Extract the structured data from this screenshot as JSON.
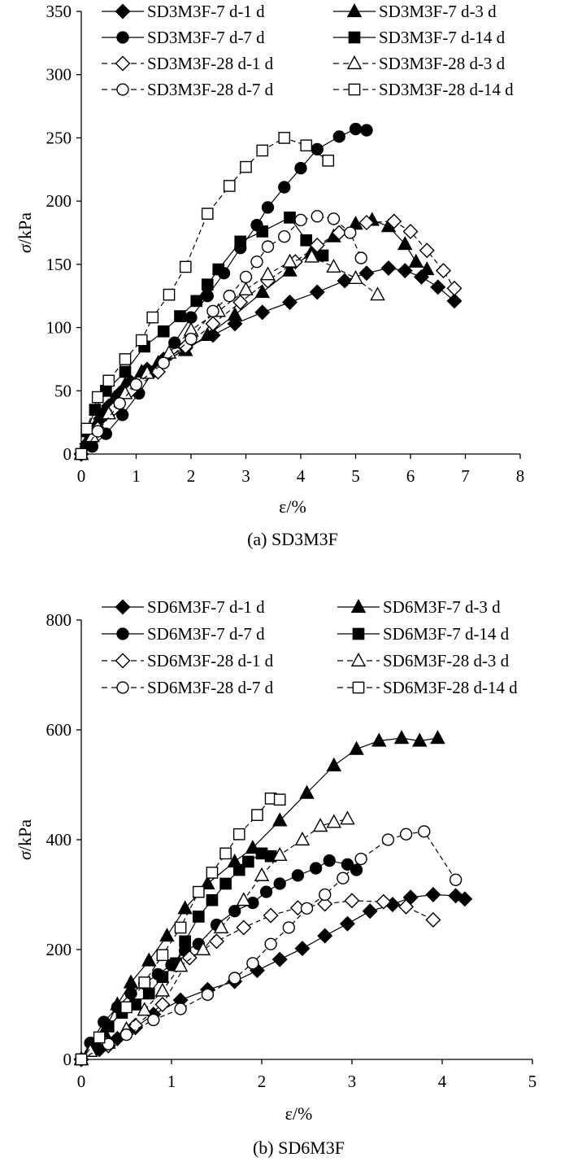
{
  "chart_data": [
    {
      "type": "line",
      "caption": "(a) SD3M3F",
      "xlabel": "ε/%",
      "ylabel_italic": "σ",
      "ylabel_unit": "/kPa",
      "xlim": [
        0,
        8
      ],
      "ylim": [
        0,
        350
      ],
      "xticks": [
        "0",
        "1",
        "2",
        "3",
        "4",
        "5",
        "6",
        "7",
        "8"
      ],
      "yticks": [
        "0",
        "50",
        "100",
        "150",
        "200",
        "250",
        "300",
        "350"
      ],
      "grid": false,
      "legend_position": "top",
      "series": [
        {
          "name": "SD3M3F-7 d-1 d",
          "marker": "diamond",
          "filled": true,
          "dashed": false,
          "x": [
            0,
            0.1,
            0.2,
            0.35,
            0.5,
            0.7,
            0.9,
            1.2,
            1.5,
            1.9,
            2.4,
            2.8,
            3.3,
            3.8,
            4.3,
            4.8,
            5.2,
            5.6,
            5.9,
            6.2,
            6.5,
            6.8
          ],
          "y": [
            0,
            8,
            18,
            28,
            38,
            48,
            57,
            67,
            75,
            84,
            94,
            103,
            112,
            120,
            128,
            137,
            143,
            147,
            145,
            140,
            132,
            121
          ]
        },
        {
          "name": "SD3M3F-7 d-3 d",
          "marker": "triangle",
          "filled": true,
          "dashed": false,
          "x": [
            0,
            0.1,
            0.25,
            0.4,
            0.6,
            0.8,
            1.1,
            1.4,
            1.9,
            2.3,
            2.8,
            3.3,
            3.8,
            4.2,
            4.6,
            5.0,
            5.3,
            5.6,
            5.9,
            6.1,
            6.3
          ],
          "y": [
            0,
            10,
            22,
            33,
            44,
            55,
            65,
            72,
            82,
            94,
            110,
            128,
            145,
            160,
            172,
            182,
            185,
            180,
            166,
            152,
            146
          ]
        },
        {
          "name": "SD3M3F-7 d-7 d",
          "marker": "circle",
          "filled": true,
          "dashed": false,
          "x": [
            0,
            0.2,
            0.45,
            0.75,
            1.05,
            1.3,
            1.7,
            2.0,
            2.3,
            2.6,
            2.9,
            3.2,
            3.4,
            3.7,
            4.0,
            4.3,
            4.7,
            5.0,
            5.2
          ],
          "y": [
            0,
            6,
            16,
            31,
            48,
            65,
            88,
            108,
            125,
            143,
            163,
            181,
            195,
            211,
            226,
            241,
            251,
            257,
            256
          ]
        },
        {
          "name": "SD3M3F-7 d-14 d",
          "marker": "square",
          "filled": true,
          "dashed": false,
          "x": [
            0,
            0.1,
            0.25,
            0.45,
            0.8,
            1.15,
            1.5,
            1.8,
            2.1,
            2.3,
            2.5,
            2.9,
            3.3,
            3.8,
            4.1,
            4.4
          ],
          "y": [
            0,
            18,
            35,
            50,
            65,
            85,
            97,
            109,
            121,
            134,
            146,
            168,
            176,
            187,
            169,
            157
          ]
        },
        {
          "name": "SD3M3F-28 d-1 d",
          "marker": "diamond",
          "filled": false,
          "dashed": true,
          "x": [
            0,
            0.3,
            0.6,
            0.9,
            1.4,
            1.9,
            2.4,
            2.9,
            3.4,
            3.9,
            4.3,
            4.7,
            5.2,
            5.7,
            6.0,
            6.3,
            6.6,
            6.8
          ],
          "y": [
            0,
            20,
            36,
            50,
            65,
            85,
            103,
            120,
            137,
            152,
            165,
            175,
            183,
            184,
            176,
            161,
            145,
            131
          ]
        },
        {
          "name": "SD3M3F-28 d-3 d",
          "marker": "triangle",
          "filled": false,
          "dashed": true,
          "x": [
            0,
            0.2,
            0.5,
            0.8,
            1.2,
            1.6,
            2.0,
            2.5,
            3.0,
            3.4,
            3.8,
            4.2,
            4.6,
            5.0,
            5.4
          ],
          "y": [
            0,
            14,
            32,
            48,
            64,
            80,
            98,
            113,
            130,
            142,
            152,
            156,
            148,
            139,
            126
          ]
        },
        {
          "name": "SD3M3F-28 d-7 d",
          "marker": "circle",
          "filled": false,
          "dashed": true,
          "x": [
            0,
            0.3,
            0.7,
            1.0,
            1.5,
            2.0,
            2.4,
            2.7,
            3.0,
            3.2,
            3.4,
            3.7,
            4.0,
            4.3,
            4.6,
            4.9,
            5.1
          ],
          "y": [
            0,
            18,
            40,
            55,
            72,
            91,
            113,
            125,
            140,
            152,
            164,
            172,
            185,
            188,
            186,
            175,
            155
          ]
        },
        {
          "name": "SD3M3F-28 d-14 d",
          "marker": "square",
          "filled": false,
          "dashed": true,
          "x": [
            0,
            0.1,
            0.3,
            0.5,
            0.8,
            1.1,
            1.3,
            1.6,
            1.9,
            2.3,
            2.7,
            3.0,
            3.3,
            3.7,
            4.1,
            4.5
          ],
          "y": [
            0,
            20,
            45,
            58,
            75,
            90,
            108,
            126,
            148,
            190,
            212,
            227,
            240,
            250,
            244,
            232
          ]
        }
      ]
    },
    {
      "type": "line",
      "caption": "(b) SD6M3F",
      "xlabel": "ε/%",
      "ylabel_italic": "σ",
      "ylabel_unit": "/kPa",
      "xlim": [
        0,
        5
      ],
      "ylim": [
        0,
        800
      ],
      "xticks": [
        "0",
        "1",
        "2",
        "3",
        "4",
        "5"
      ],
      "yticks": [
        "0",
        "200",
        "400",
        "600",
        "800"
      ],
      "grid": false,
      "legend_position": "top",
      "series": [
        {
          "name": "SD6M3F-7 d-1 d",
          "marker": "diamond",
          "filled": true,
          "dashed": false,
          "x": [
            0,
            0.2,
            0.4,
            0.6,
            0.8,
            1.1,
            1.4,
            1.7,
            1.95,
            2.2,
            2.45,
            2.7,
            2.95,
            3.2,
            3.45,
            3.65,
            3.9,
            4.15,
            4.25
          ],
          "y": [
            0,
            18,
            38,
            58,
            82,
            108,
            127,
            142,
            162,
            182,
            202,
            225,
            247,
            270,
            282,
            295,
            300,
            298,
            292
          ]
        },
        {
          "name": "SD6M3F-7 d-3 d",
          "marker": "triangle",
          "filled": true,
          "dashed": false,
          "x": [
            0,
            0.1,
            0.25,
            0.4,
            0.55,
            0.75,
            0.95,
            1.15,
            1.4,
            1.7,
            1.9,
            2.2,
            2.5,
            2.8,
            3.05,
            3.3,
            3.55,
            3.75,
            3.95
          ],
          "y": [
            0,
            18,
            50,
            100,
            140,
            180,
            225,
            275,
            320,
            360,
            385,
            435,
            485,
            535,
            565,
            580,
            585,
            580,
            585
          ]
        },
        {
          "name": "SD6M3F-7 d-7 d",
          "marker": "circle",
          "filled": true,
          "dashed": false,
          "x": [
            0,
            0.1,
            0.25,
            0.4,
            0.55,
            0.7,
            0.85,
            1.0,
            1.15,
            1.3,
            1.5,
            1.7,
            1.9,
            2.05,
            2.2,
            2.4,
            2.6,
            2.75,
            2.95,
            3.05
          ],
          "y": [
            0,
            30,
            68,
            95,
            120,
            138,
            155,
            172,
            198,
            210,
            245,
            270,
            285,
            305,
            320,
            335,
            348,
            362,
            355,
            345
          ]
        },
        {
          "name": "SD6M3F-7 d-14 d",
          "marker": "square",
          "filled": true,
          "dashed": false,
          "x": [
            0,
            0.15,
            0.3,
            0.45,
            0.6,
            0.75,
            0.9,
            1.05,
            1.15,
            1.3,
            1.45,
            1.6,
            1.75,
            1.85,
            2.0,
            2.1
          ],
          "y": [
            0,
            30,
            60,
            85,
            100,
            120,
            150,
            175,
            215,
            260,
            290,
            320,
            345,
            360,
            375,
            370
          ]
        },
        {
          "name": "SD6M3F-28 d-1 d",
          "marker": "diamond",
          "filled": false,
          "dashed": true,
          "x": [
            0,
            0.3,
            0.6,
            0.9,
            1.2,
            1.5,
            1.8,
            2.1,
            2.4,
            2.7,
            3.0,
            3.35,
            3.6,
            3.9
          ],
          "y": [
            0,
            25,
            62,
            100,
            185,
            215,
            240,
            262,
            276,
            283,
            289,
            287,
            278,
            254
          ]
        },
        {
          "name": "SD6M3F-28 d-3 d",
          "marker": "triangle",
          "filled": false,
          "dashed": true,
          "x": [
            0,
            0.1,
            0.3,
            0.5,
            0.7,
            0.9,
            1.1,
            1.35,
            1.55,
            1.8,
            2.0,
            2.2,
            2.45,
            2.65,
            2.8,
            2.95
          ],
          "y": [
            0,
            15,
            30,
            55,
            90,
            125,
            170,
            200,
            240,
            290,
            335,
            372,
            400,
            425,
            432,
            438
          ]
        },
        {
          "name": "SD6M3F-28 d-7 d",
          "marker": "circle",
          "filled": false,
          "dashed": true,
          "x": [
            0,
            0.3,
            0.5,
            0.8,
            1.1,
            1.4,
            1.7,
            1.9,
            2.1,
            2.3,
            2.5,
            2.7,
            2.9,
            3.1,
            3.4,
            3.6,
            3.8,
            4.15
          ],
          "y": [
            0,
            28,
            45,
            72,
            92,
            118,
            148,
            175,
            210,
            240,
            275,
            300,
            330,
            365,
            400,
            410,
            415,
            327
          ]
        },
        {
          "name": "SD6M3F-28 d-14 d",
          "marker": "square",
          "filled": false,
          "dashed": true,
          "x": [
            0,
            0.2,
            0.5,
            0.7,
            0.9,
            1.1,
            1.3,
            1.45,
            1.6,
            1.75,
            1.95,
            2.1,
            2.2
          ],
          "y": [
            0,
            40,
            95,
            140,
            190,
            240,
            305,
            340,
            375,
            410,
            445,
            475,
            473
          ]
        }
      ]
    }
  ]
}
